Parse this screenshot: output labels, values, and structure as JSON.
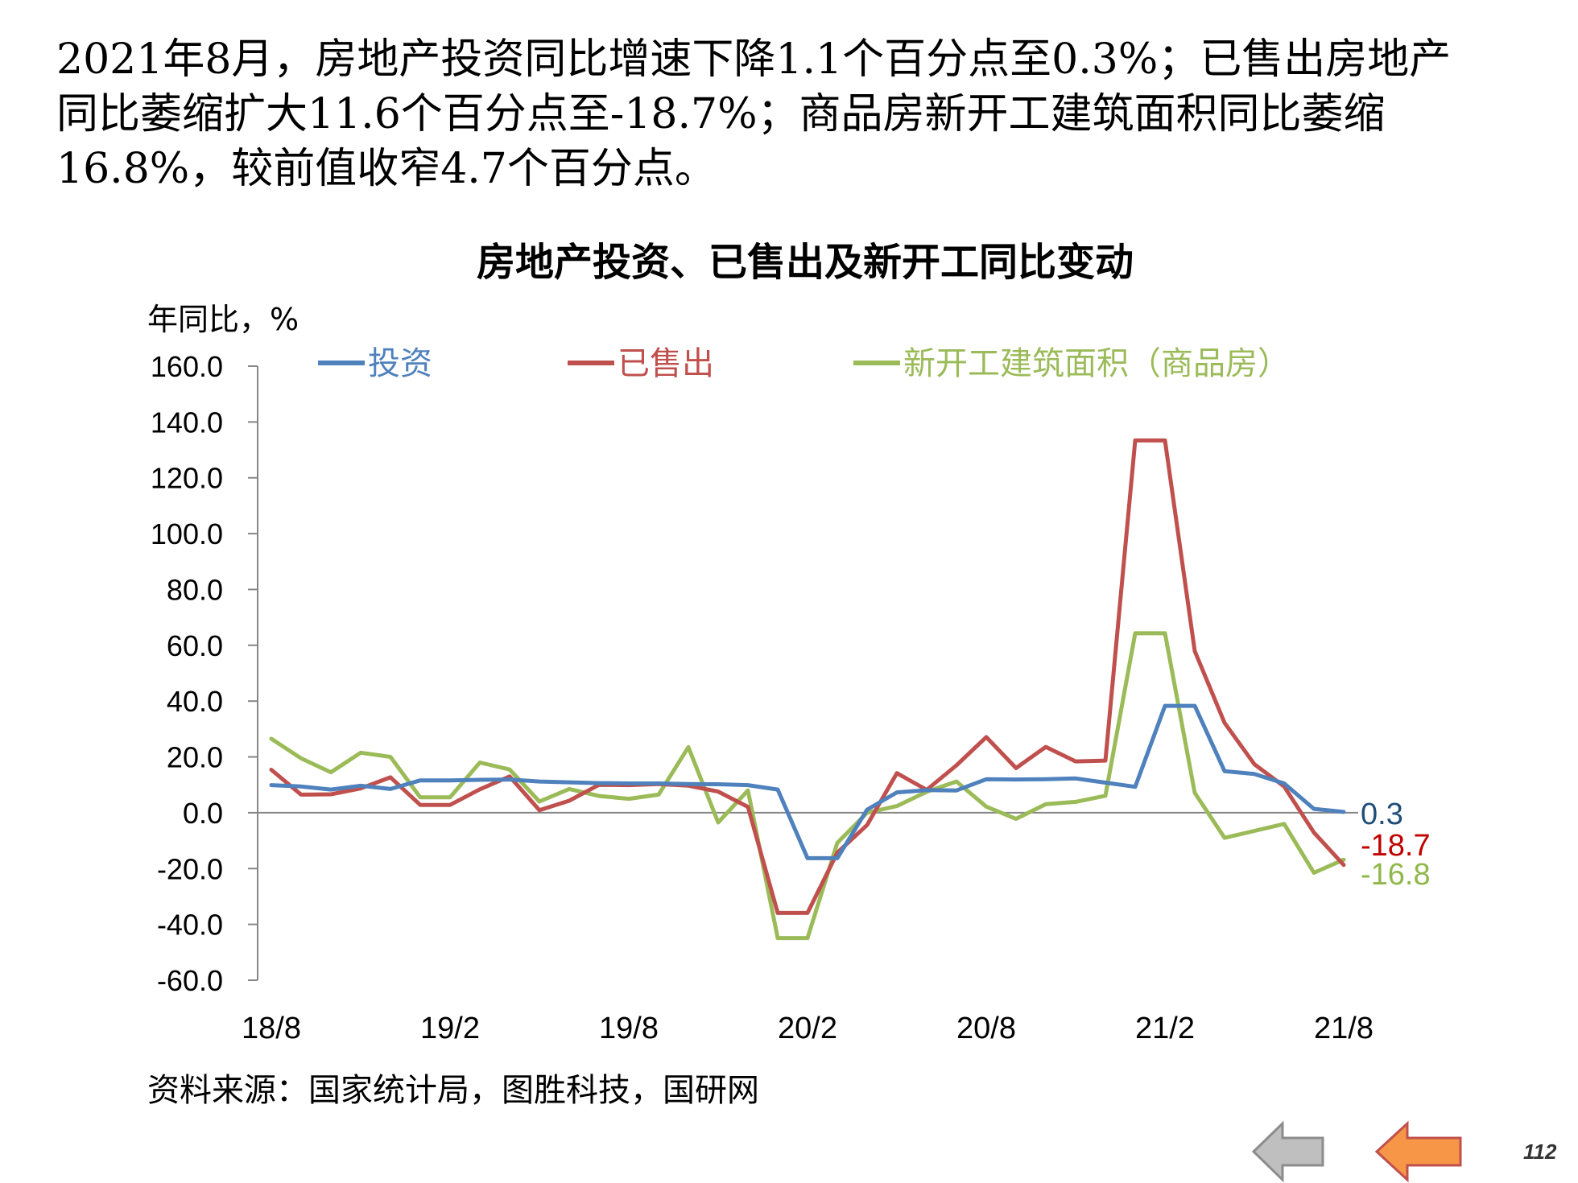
{
  "intro": {
    "line1": "2021年8月，房地产投资同比增速下降1.1个百分点至0.3%；已售出房地产",
    "line2": "同比萎缩扩大11.6个百分点至-18.7%；商品房新开工建筑面积同比萎缩",
    "line3": "16.8%，较前值收窄4.7个百分点。"
  },
  "source": "资料来源：国家统计局，图胜科技，国研网",
  "page_number": "112",
  "nav": {
    "back_color": "#bfbfbf",
    "forward_color": "#f79646"
  },
  "chart_data": {
    "type": "line",
    "title": "房地产投资、已售出及新开工同比变动",
    "ylabel": "年同比，%",
    "xlabel": "",
    "ylim": [
      -60,
      160
    ],
    "yticks": [
      "160.0",
      "140.0",
      "120.0",
      "100.0",
      "80.0",
      "60.0",
      "40.0",
      "20.0",
      "0.0",
      "-20.0",
      "-40.0",
      "-60.0"
    ],
    "xtick_labels": [
      "18/8",
      "19/2",
      "19/8",
      "20/2",
      "20/8",
      "21/2",
      "21/8"
    ],
    "legend_position": "top",
    "grid": false,
    "x": [
      "18/8",
      "18/9",
      "18/10",
      "18/11",
      "18/12",
      "19/1",
      "19/2",
      "19/3",
      "19/4",
      "19/5",
      "19/6",
      "19/7",
      "19/8",
      "19/9",
      "19/10",
      "19/11",
      "19/12",
      "20/1",
      "20/2",
      "20/3",
      "20/4",
      "20/5",
      "20/6",
      "20/7",
      "20/8",
      "20/9",
      "20/10",
      "20/11",
      "20/12",
      "21/1",
      "21/2",
      "21/3",
      "21/4",
      "21/5",
      "21/6",
      "21/7",
      "21/8"
    ],
    "series": [
      {
        "name": "投资",
        "color": "#4f81bd",
        "end_label": "0.3",
        "end_label_color": "#1f4e79",
        "values": [
          9.9,
          9.4,
          8.3,
          9.7,
          8.5,
          11.6,
          11.6,
          11.8,
          11.9,
          11.2,
          10.9,
          10.6,
          10.5,
          10.5,
          10.3,
          10.2,
          9.9,
          8.3,
          -16.3,
          -16.3,
          1.1,
          7.3,
          8.1,
          8.0,
          12.0,
          11.9,
          12.0,
          12.3,
          10.8,
          9.3,
          38.3,
          38.3,
          14.9,
          13.9,
          10.5,
          1.4,
          0.3
        ]
      },
      {
        "name": "已售出",
        "color": "#c0504d",
        "end_label": "-18.7",
        "end_label_color": "#c00000",
        "values": [
          15.4,
          6.5,
          6.6,
          8.7,
          12.7,
          2.8,
          2.8,
          8.4,
          13.0,
          0.9,
          4.3,
          10.0,
          9.9,
          10.3,
          9.7,
          7.6,
          2.1,
          -35.9,
          -35.9,
          -14.3,
          -4.4,
          14.2,
          8.2,
          17.0,
          27.1,
          16.0,
          23.6,
          18.4,
          18.7,
          133.4,
          133.4,
          57.9,
          32.2,
          17.4,
          9.4,
          -7.1,
          -18.7
        ]
      },
      {
        "name": "新开工建筑面积（商品房）",
        "color": "#9bbb59",
        "end_label": "-16.8",
        "end_label_color": "#8fb84a",
        "values": [
          26.5,
          19.5,
          14.5,
          21.5,
          20.0,
          5.5,
          5.5,
          18.0,
          15.5,
          4.0,
          8.5,
          6.0,
          5.0,
          6.5,
          23.5,
          -3.5,
          8.0,
          -44.9,
          -44.9,
          -10.8,
          0.0,
          2.4,
          7.5,
          11.2,
          2.2,
          -2.2,
          3.1,
          3.9,
          6.1,
          64.3,
          64.3,
          7.1,
          -9.0,
          -6.5,
          -4.0,
          -21.5,
          -16.8
        ]
      }
    ]
  }
}
